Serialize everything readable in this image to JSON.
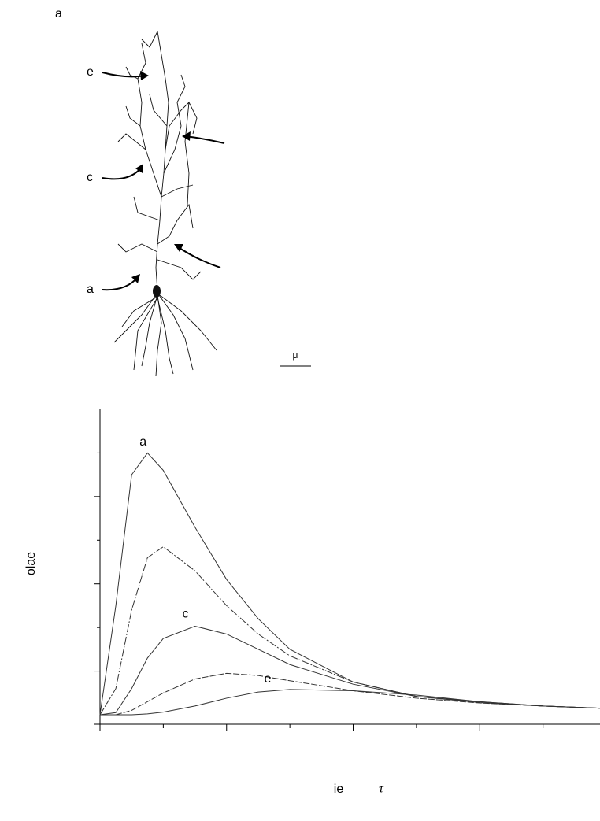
{
  "figure": {
    "panel_label": "a",
    "neuron": {
      "labels": [
        "e",
        "c",
        "a"
      ],
      "scale_bar": "μ"
    }
  },
  "chart_data": {
    "type": "line",
    "ylabel": "olae",
    "xlabel": "ie",
    "xlabel_symbol": "τ",
    "x": [
      0,
      0.25,
      0.5,
      0.75,
      1,
      1.5,
      2,
      2.5,
      3,
      4,
      5,
      6,
      7,
      7.9
    ],
    "series": [
      {
        "color": "#333333",
        "values": [
          0,
          2.5,
          5.5,
          6.0,
          5.6,
          4.3,
          3.1,
          2.2,
          1.5,
          0.75,
          0.42,
          0.3,
          0.2,
          0.15
        ]
      },
      {
        "color": "#333333",
        "values": [
          0,
          0.6,
          2.4,
          3.6,
          3.85,
          3.3,
          2.5,
          1.85,
          1.35,
          0.75,
          0.42,
          0.28,
          0.2,
          0.15
        ]
      },
      {
        "color": "#333333",
        "values": [
          0,
          0.05,
          0.6,
          1.3,
          1.75,
          2.03,
          1.85,
          1.5,
          1.15,
          0.7,
          0.42,
          0.28,
          0.2,
          0.15
        ]
      },
      {
        "color": "#333333",
        "values": [
          0,
          0,
          0.1,
          0.3,
          0.5,
          0.82,
          0.95,
          0.9,
          0.78,
          0.55,
          0.38,
          0.27,
          0.2,
          0.15
        ]
      },
      {
        "color": "#333333",
        "values": [
          0,
          0,
          0,
          0.02,
          0.06,
          0.2,
          0.38,
          0.52,
          0.58,
          0.55,
          0.45,
          0.3,
          0.2,
          0.15
        ]
      }
    ],
    "annotations": [
      {
        "text": "a",
        "x": 0.68,
        "y": 6.25
      },
      {
        "text": "c",
        "x": 1.35,
        "y": 2.3
      },
      {
        "text": "e",
        "x": 2.65,
        "y": 0.82
      }
    ],
    "xlim": [
      0,
      7.9
    ],
    "ylim": [
      0,
      7
    ],
    "xticks": [
      0,
      1,
      2,
      3,
      4,
      5,
      6,
      7
    ],
    "yticks": [
      1,
      2,
      3,
      4,
      5,
      6
    ]
  }
}
